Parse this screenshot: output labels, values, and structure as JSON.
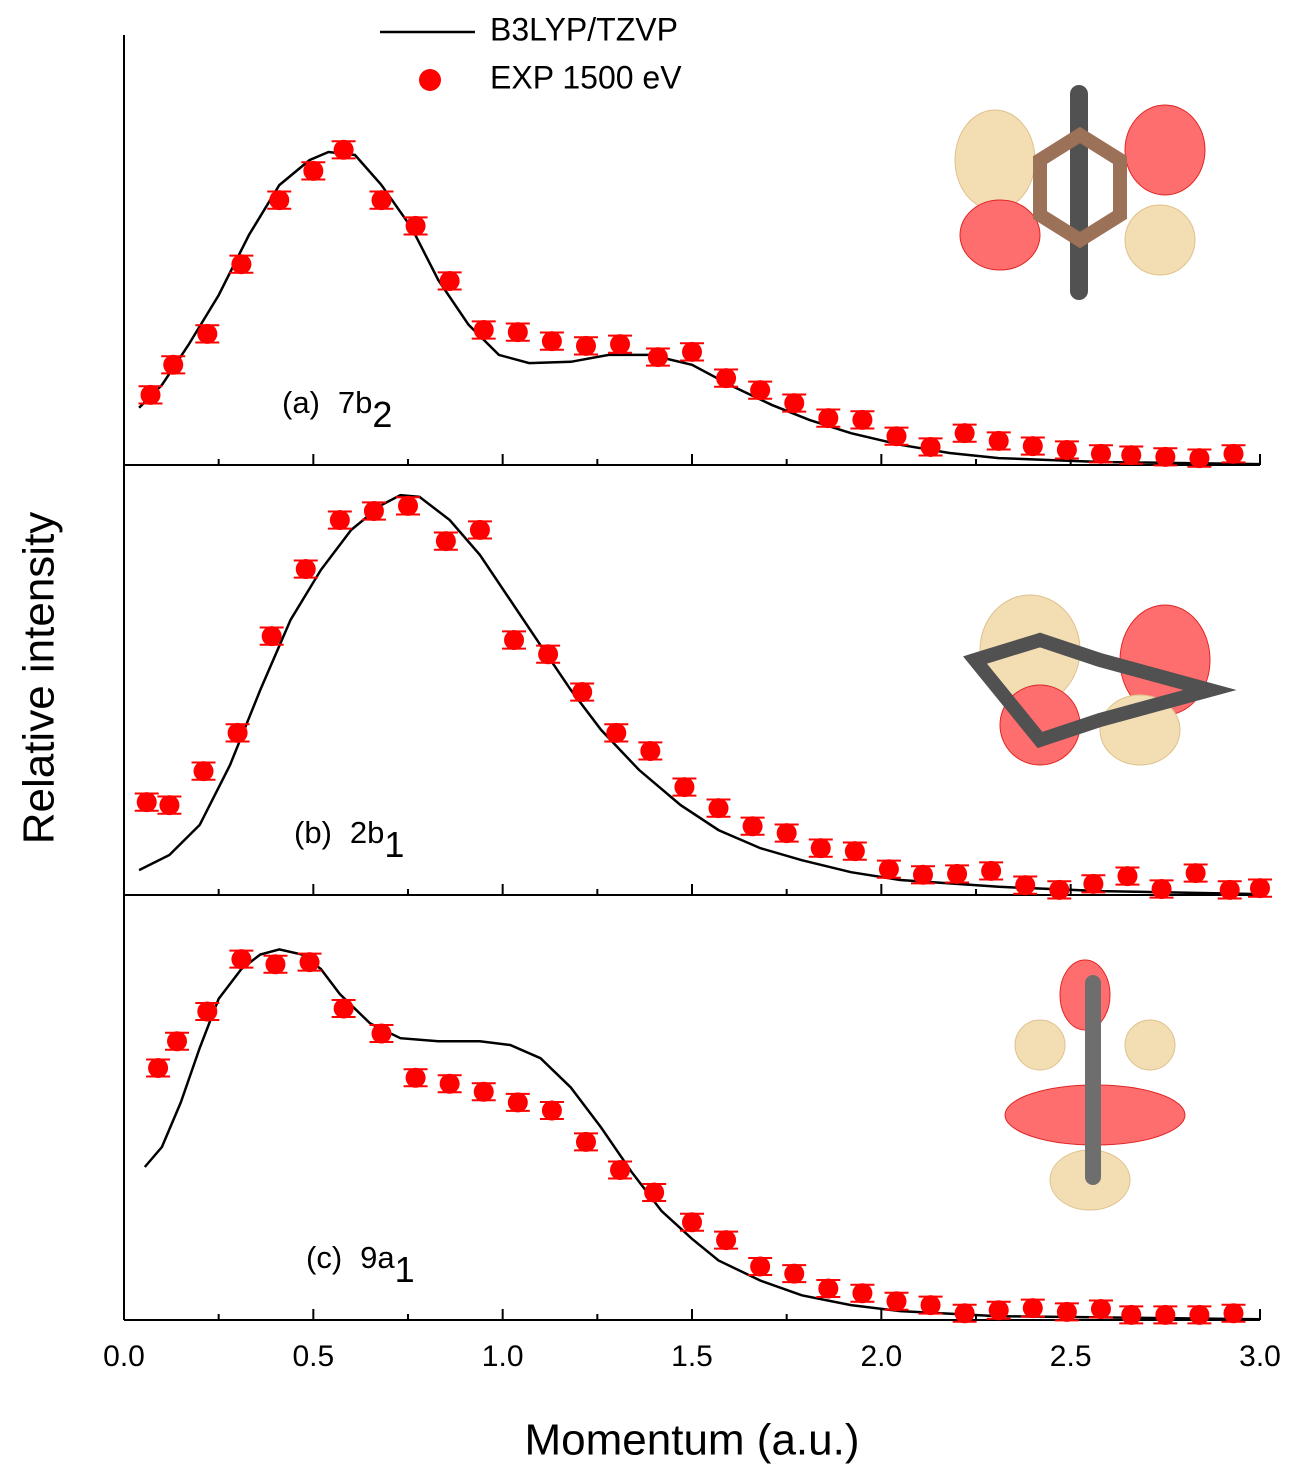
{
  "chart_data": [
    {
      "type": "line",
      "panel_label": "(a)",
      "orbital": "7b",
      "orbital_sub": "2",
      "xlim": [
        0,
        3
      ],
      "xticks": [
        0,
        0.5,
        1,
        1.5,
        2,
        2.5,
        3
      ],
      "xminor_ticks": [
        0.25,
        0.75,
        1.25,
        1.75,
        2.25,
        2.75
      ],
      "ylim": [
        0,
        100
      ],
      "series": [
        {
          "name": "B3LYP/TZVP",
          "kind": "line",
          "color": "#000000",
          "x": [
            0.04,
            0.1,
            0.17,
            0.25,
            0.33,
            0.41,
            0.49,
            0.54,
            0.61,
            0.68,
            0.76,
            0.83,
            0.91,
            0.99,
            1.07,
            1.18,
            1.28,
            1.39,
            1.5,
            1.6,
            1.71,
            1.81,
            1.92,
            2.05,
            2.18,
            2.31,
            2.58,
            3.0
          ],
          "values": [
            13.3,
            18.6,
            27.9,
            39.5,
            53.5,
            65.1,
            70.9,
            72.8,
            72.1,
            65.1,
            55.1,
            43.0,
            32.6,
            25.6,
            23.7,
            24.0,
            25.6,
            25.6,
            23.3,
            18.6,
            14.0,
            10.5,
            7.4,
            4.7,
            2.8,
            1.6,
            0.7,
            0.2
          ]
        },
        {
          "name": "EXP 1500 eV",
          "kind": "markers",
          "color": "#ff0000",
          "x": [
            0.07,
            0.13,
            0.22,
            0.31,
            0.41,
            0.5,
            0.58,
            0.68,
            0.77,
            0.86,
            0.95,
            1.04,
            1.13,
            1.22,
            1.31,
            1.41,
            1.5,
            1.59,
            1.68,
            1.77,
            1.86,
            1.95,
            2.04,
            2.13,
            2.22,
            2.31,
            2.4,
            2.49,
            2.58,
            2.66,
            2.75,
            2.84,
            2.93
          ],
          "values": [
            16.3,
            23.3,
            30.5,
            46.7,
            61.6,
            68.4,
            73.3,
            61.6,
            55.6,
            42.8,
            31.4,
            30.9,
            28.8,
            27.7,
            28.1,
            25.1,
            26.3,
            20.2,
            17.4,
            14.4,
            10.9,
            10.5,
            6.7,
            4.2,
            7.4,
            5.6,
            4.4,
            3.5,
            2.6,
            2.3,
            1.9,
            1.6,
            2.6
          ],
          "errors": [
            2,
            2,
            2,
            2,
            2,
            2,
            2,
            2,
            2,
            2,
            2,
            2,
            2,
            2,
            2,
            2,
            2,
            2,
            2,
            2,
            2,
            2,
            2,
            2,
            2,
            2,
            2,
            2,
            2,
            2,
            2,
            2,
            2
          ]
        }
      ]
    },
    {
      "type": "line",
      "panel_label": "(b)",
      "orbital": "2b",
      "orbital_sub": "1",
      "xlim": [
        0,
        3
      ],
      "xticks": [
        0,
        0.5,
        1,
        1.5,
        2,
        2.5,
        3
      ],
      "xminor_ticks": [
        0.25,
        0.75,
        1.25,
        1.75,
        2.25,
        2.75
      ],
      "ylim": [
        0,
        100
      ],
      "series": [
        {
          "kind": "line",
          "color": "#000000",
          "x": [
            0.04,
            0.12,
            0.2,
            0.28,
            0.36,
            0.44,
            0.52,
            0.6,
            0.68,
            0.73,
            0.78,
            0.86,
            0.94,
            1.02,
            1.1,
            1.18,
            1.26,
            1.36,
            1.47,
            1.57,
            1.68,
            1.79,
            1.92,
            2.05,
            2.31,
            2.58,
            3.0
          ],
          "values": [
            5.8,
            9.3,
            16.3,
            30.2,
            47.7,
            64.0,
            75.6,
            84.9,
            90.7,
            93.0,
            92.6,
            87.2,
            79.1,
            68.6,
            58.1,
            47.7,
            38.4,
            29.1,
            20.9,
            15.1,
            10.9,
            8.1,
            5.3,
            3.5,
            1.9,
            0.9,
            0.2
          ]
        },
        {
          "kind": "markers",
          "color": "#ff0000",
          "x": [
            0.06,
            0.12,
            0.21,
            0.3,
            0.39,
            0.48,
            0.57,
            0.66,
            0.75,
            0.85,
            0.94,
            1.03,
            1.12,
            1.21,
            1.3,
            1.39,
            1.48,
            1.57,
            1.66,
            1.75,
            1.84,
            1.93,
            2.02,
            2.11,
            2.2,
            2.29,
            2.38,
            2.47,
            2.56,
            2.65,
            2.74,
            2.83,
            2.92,
            3.0
          ],
          "values": [
            21.6,
            20.9,
            28.8,
            37.7,
            60.2,
            75.8,
            87.2,
            89.3,
            90.5,
            82.3,
            84.9,
            59.3,
            56.0,
            47.2,
            37.7,
            33.5,
            25.1,
            20.2,
            16.0,
            14.4,
            10.9,
            10.2,
            6.0,
            4.7,
            4.9,
            5.6,
            2.3,
            1.2,
            2.6,
            4.4,
            1.4,
            5.1,
            1.2,
            1.6
          ],
          "errors": [
            2,
            2,
            2,
            2,
            2,
            2,
            2,
            2,
            2,
            2,
            2,
            2,
            2,
            2,
            2,
            2,
            2,
            2,
            2,
            2,
            2,
            2,
            2,
            2,
            2,
            2,
            2,
            2,
            2,
            2,
            2,
            2,
            2,
            2
          ]
        }
      ]
    },
    {
      "type": "line",
      "panel_label": "(c)",
      "orbital": "9a",
      "orbital_sub": "1",
      "xlim": [
        0,
        3
      ],
      "xticks": [
        {
          "value": 0,
          "label": "0.0"
        },
        {
          "value": 0.5,
          "label": "0.5"
        },
        {
          "value": 1,
          "label": "1.0"
        },
        {
          "value": 1.5,
          "label": "1.5"
        },
        {
          "value": 2,
          "label": "2.0"
        },
        {
          "value": 2.5,
          "label": "2.5"
        },
        {
          "value": 3,
          "label": "3.0"
        }
      ],
      "xminor_ticks": [
        0.25,
        0.75,
        1.25,
        1.75,
        2.25,
        2.75
      ],
      "ylim": [
        0,
        100
      ],
      "xlabel": "Momentum (a.u.)",
      "ylabel": "Relative intensity",
      "series": [
        {
          "kind": "line",
          "color": "#000000",
          "x": [
            0.055,
            0.1,
            0.15,
            0.2,
            0.25,
            0.31,
            0.36,
            0.41,
            0.47,
            0.52,
            0.57,
            0.65,
            0.73,
            0.83,
            0.94,
            1.02,
            1.1,
            1.18,
            1.26,
            1.34,
            1.42,
            1.5,
            1.57,
            1.68,
            1.79,
            1.92,
            2.05,
            2.31,
            3.0
          ],
          "values": [
            36.0,
            40.7,
            51.2,
            64.0,
            75.6,
            82.6,
            86.0,
            87.2,
            86.0,
            82.6,
            76.7,
            69.8,
            66.3,
            65.6,
            65.6,
            64.7,
            61.6,
            54.7,
            45.3,
            34.9,
            25.6,
            19.1,
            14.0,
            9.3,
            5.8,
            3.5,
            2.1,
            0.9,
            0.2
          ]
        },
        {
          "kind": "markers",
          "color": "#ff0000",
          "x": [
            0.09,
            0.14,
            0.22,
            0.31,
            0.4,
            0.49,
            0.58,
            0.68,
            0.77,
            0.86,
            0.95,
            1.04,
            1.13,
            1.22,
            1.31,
            1.4,
            1.5,
            1.59,
            1.68,
            1.77,
            1.86,
            1.95,
            2.04,
            2.13,
            2.22,
            2.31,
            2.4,
            2.49,
            2.58,
            2.66,
            2.75,
            2.84,
            2.93
          ],
          "values": [
            59.3,
            65.6,
            72.6,
            84.9,
            83.7,
            84.2,
            73.3,
            67.4,
            57.0,
            55.6,
            53.7,
            51.2,
            49.3,
            41.9,
            35.3,
            30.0,
            23.0,
            18.8,
            12.6,
            10.9,
            7.4,
            6.3,
            4.4,
            3.5,
            1.6,
            2.3,
            2.8,
            1.9,
            2.6,
            1.2,
            1.2,
            1.2,
            1.6
          ],
          "errors": [
            2,
            2,
            2,
            2,
            2,
            2,
            2,
            2,
            2,
            2,
            2,
            2,
            2,
            2,
            2,
            2,
            2,
            2,
            2,
            2,
            2,
            2,
            2,
            2,
            2,
            2,
            2,
            2,
            2,
            2,
            2,
            2,
            2
          ]
        }
      ]
    }
  ]
}
